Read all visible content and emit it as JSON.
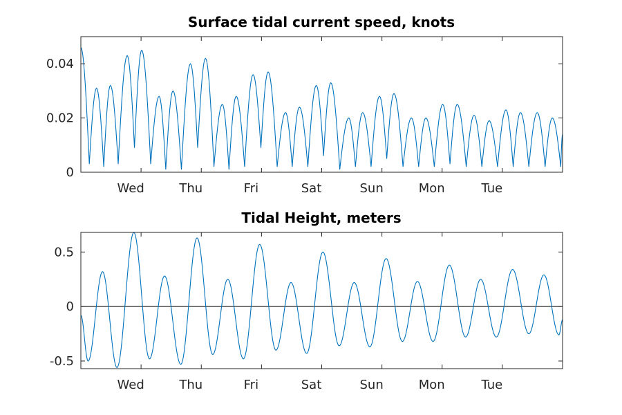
{
  "chart_data": [
    {
      "type": "line",
      "title": "Surface tidal current speed, knots",
      "xlabel": "",
      "ylabel": "",
      "x_range_days": [
        0,
        8
      ],
      "x_ticks": [
        {
          "day": 1,
          "label": "Wed"
        },
        {
          "day": 2,
          "label": "Thu"
        },
        {
          "day": 3,
          "label": "Fri"
        },
        {
          "day": 4,
          "label": "Sat"
        },
        {
          "day": 5,
          "label": "Sun"
        },
        {
          "day": 6,
          "label": "Mon"
        },
        {
          "day": 7,
          "label": "Tue"
        }
      ],
      "ylim": [
        0,
        0.05
      ],
      "y_ticks": [
        {
          "value": 0,
          "label": "0"
        },
        {
          "value": 0.02,
          "label": "0.02"
        },
        {
          "value": 0.04,
          "label": "0.04"
        }
      ],
      "series": [
        {
          "color": "#0072BD",
          "peaks": [
            {
              "x": 0.0,
              "y": 0.046
            },
            {
              "x": 0.26,
              "y": 0.031
            },
            {
              "x": 0.49,
              "y": 0.032
            },
            {
              "x": 0.77,
              "y": 0.043
            },
            {
              "x": 1.01,
              "y": 0.045
            },
            {
              "x": 1.3,
              "y": 0.028
            },
            {
              "x": 1.53,
              "y": 0.03
            },
            {
              "x": 1.82,
              "y": 0.04
            },
            {
              "x": 2.07,
              "y": 0.042
            },
            {
              "x": 2.35,
              "y": 0.025
            },
            {
              "x": 2.58,
              "y": 0.028
            },
            {
              "x": 2.86,
              "y": 0.036
            },
            {
              "x": 3.11,
              "y": 0.037
            },
            {
              "x": 3.4,
              "y": 0.022
            },
            {
              "x": 3.63,
              "y": 0.024
            },
            {
              "x": 3.91,
              "y": 0.032
            },
            {
              "x": 4.15,
              "y": 0.033
            },
            {
              "x": 4.45,
              "y": 0.02
            },
            {
              "x": 4.68,
              "y": 0.022
            },
            {
              "x": 4.96,
              "y": 0.028
            },
            {
              "x": 5.2,
              "y": 0.029
            },
            {
              "x": 5.49,
              "y": 0.02
            },
            {
              "x": 5.73,
              "y": 0.02
            },
            {
              "x": 6.01,
              "y": 0.025
            },
            {
              "x": 6.25,
              "y": 0.025
            },
            {
              "x": 6.53,
              "y": 0.021
            },
            {
              "x": 6.78,
              "y": 0.019
            },
            {
              "x": 7.06,
              "y": 0.023
            },
            {
              "x": 7.3,
              "y": 0.022
            },
            {
              "x": 7.58,
              "y": 0.022
            },
            {
              "x": 7.83,
              "y": 0.02
            }
          ],
          "troughs": [
            {
              "x": 0.14,
              "y": 0.003
            },
            {
              "x": 0.38,
              "y": 0.002
            },
            {
              "x": 0.62,
              "y": 0.003
            },
            {
              "x": 0.89,
              "y": 0.009
            },
            {
              "x": 1.16,
              "y": 0.003
            },
            {
              "x": 1.41,
              "y": 0.001
            },
            {
              "x": 1.67,
              "y": 0.001
            },
            {
              "x": 1.94,
              "y": 0.009
            },
            {
              "x": 2.21,
              "y": 0.002
            },
            {
              "x": 2.46,
              "y": 0.001
            },
            {
              "x": 2.72,
              "y": 0.002
            },
            {
              "x": 2.99,
              "y": 0.009
            },
            {
              "x": 3.26,
              "y": 0.002
            },
            {
              "x": 3.51,
              "y": 0.002
            },
            {
              "x": 3.77,
              "y": 0.002
            },
            {
              "x": 4.03,
              "y": 0.006
            },
            {
              "x": 4.3,
              "y": 0.001
            },
            {
              "x": 4.56,
              "y": 0.002
            },
            {
              "x": 4.82,
              "y": 0.002
            },
            {
              "x": 5.08,
              "y": 0.005
            },
            {
              "x": 5.35,
              "y": 0.002
            },
            {
              "x": 5.61,
              "y": 0.002
            },
            {
              "x": 5.87,
              "y": 0.002
            },
            {
              "x": 6.13,
              "y": 0.003
            },
            {
              "x": 6.4,
              "y": 0.002
            },
            {
              "x": 6.66,
              "y": 0.002
            },
            {
              "x": 6.92,
              "y": 0.002
            },
            {
              "x": 7.18,
              "y": 0.002
            },
            {
              "x": 7.44,
              "y": 0.002
            },
            {
              "x": 7.71,
              "y": 0.002
            },
            {
              "x": 7.97,
              "y": 0.002
            }
          ],
          "end_point": {
            "x": 8.0,
            "y": 0.014
          }
        }
      ],
      "grid": false,
      "legend": "none"
    },
    {
      "type": "line",
      "title": "Tidal Height, meters",
      "xlabel": "",
      "ylabel": "",
      "x_range_days": [
        0,
        8
      ],
      "x_ticks": [
        {
          "day": 1,
          "label": "Wed"
        },
        {
          "day": 2,
          "label": "Thu"
        },
        {
          "day": 3,
          "label": "Fri"
        },
        {
          "day": 4,
          "label": "Sat"
        },
        {
          "day": 5,
          "label": "Sun"
        },
        {
          "day": 6,
          "label": "Mon"
        },
        {
          "day": 7,
          "label": "Tue"
        }
      ],
      "ylim": [
        -0.57,
        0.68
      ],
      "y_ticks": [
        {
          "value": -0.5,
          "label": "-0.5"
        },
        {
          "value": 0,
          "label": "0"
        },
        {
          "value": 0.5,
          "label": "0.5"
        }
      ],
      "reference_line_y": 0,
      "series": [
        {
          "color": "#0072BD",
          "start_point": {
            "x": 0.0,
            "y": -0.08
          },
          "extrema": [
            {
              "x": 0.12,
              "y": -0.5
            },
            {
              "x": 0.36,
              "y": 0.32
            },
            {
              "x": 0.6,
              "y": -0.56
            },
            {
              "x": 0.88,
              "y": 0.68
            },
            {
              "x": 1.14,
              "y": -0.48
            },
            {
              "x": 1.39,
              "y": 0.28
            },
            {
              "x": 1.66,
              "y": -0.53
            },
            {
              "x": 1.93,
              "y": 0.63
            },
            {
              "x": 2.19,
              "y": -0.44
            },
            {
              "x": 2.44,
              "y": 0.25
            },
            {
              "x": 2.7,
              "y": -0.48
            },
            {
              "x": 2.97,
              "y": 0.57
            },
            {
              "x": 3.24,
              "y": -0.4
            },
            {
              "x": 3.49,
              "y": 0.22
            },
            {
              "x": 3.75,
              "y": -0.43
            },
            {
              "x": 4.02,
              "y": 0.5
            },
            {
              "x": 4.29,
              "y": -0.36
            },
            {
              "x": 4.54,
              "y": 0.22
            },
            {
              "x": 4.8,
              "y": -0.37
            },
            {
              "x": 5.07,
              "y": 0.44
            },
            {
              "x": 5.34,
              "y": -0.32
            },
            {
              "x": 5.59,
              "y": 0.23
            },
            {
              "x": 5.85,
              "y": -0.32
            },
            {
              "x": 6.12,
              "y": 0.38
            },
            {
              "x": 6.39,
              "y": -0.28
            },
            {
              "x": 6.64,
              "y": 0.25
            },
            {
              "x": 6.9,
              "y": -0.28
            },
            {
              "x": 7.17,
              "y": 0.34
            },
            {
              "x": 7.44,
              "y": -0.25
            },
            {
              "x": 7.69,
              "y": 0.29
            },
            {
              "x": 7.94,
              "y": -0.26
            }
          ],
          "end_point": {
            "x": 8.0,
            "y": -0.12
          }
        }
      ],
      "grid": false,
      "legend": "none"
    }
  ]
}
